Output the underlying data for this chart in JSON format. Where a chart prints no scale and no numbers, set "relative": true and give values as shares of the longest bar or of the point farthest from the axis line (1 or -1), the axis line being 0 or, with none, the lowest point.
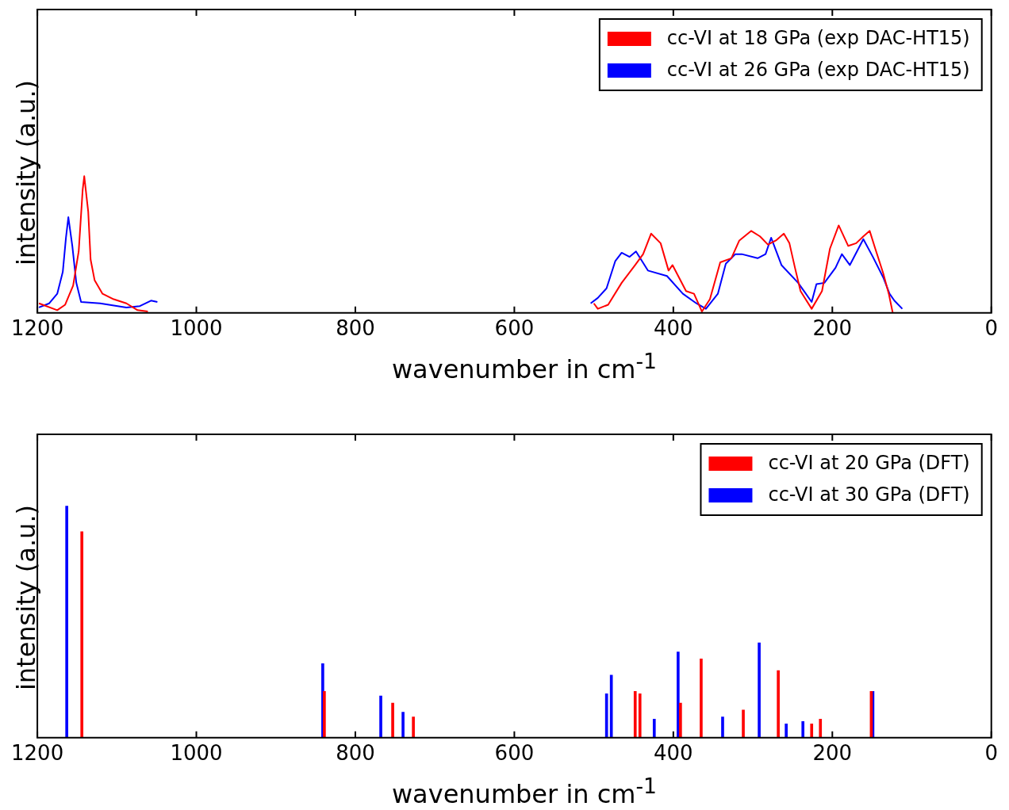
{
  "chart_data": [
    {
      "type": "line",
      "xlabel": "wavenumber in cm$^{-1}$",
      "ylabel": "intensity (a.u.)",
      "relative": true,
      "xlim": [
        1200,
        0
      ],
      "xticks": [
        1200,
        1000,
        800,
        600,
        400,
        200,
        0
      ],
      "legend": "top right",
      "series": [
        {
          "name": "cc-VI at 18 GPa (exp DAC-HT15)",
          "color": "#ff0000",
          "x": [
            1198,
            1175,
            1165,
            1155,
            1148,
            1143,
            1141,
            1136,
            1133,
            1128,
            1118,
            1104,
            1088,
            1074,
            1061,
            800,
            500,
            495,
            482,
            465,
            448,
            438,
            428,
            416,
            406,
            401,
            384,
            374,
            364,
            354,
            341,
            327,
            317,
            302,
            291,
            281,
            271,
            261,
            254,
            247,
            240,
            226,
            213,
            203,
            192,
            180,
            170,
            161,
            153,
            146,
            136,
            129,
            124
          ],
          "values": [
            0.07,
            0.02,
            0.06,
            0.2,
            0.45,
            0.9,
            1,
            0.74,
            0.39,
            0.24,
            0.14,
            0.1,
            0.07,
            0.02,
            0.01,
            null,
            0.07,
            0.03,
            0.06,
            0.22,
            0.35,
            0.43,
            0.58,
            0.51,
            0.31,
            0.35,
            0.16,
            0.14,
            0.01,
            0.1,
            0.37,
            0.4,
            0.53,
            0.6,
            0.56,
            0.5,
            0.53,
            0.58,
            0.51,
            0.33,
            0.16,
            0.03,
            0.16,
            0.47,
            0.64,
            0.49,
            0.51,
            0.56,
            0.6,
            0.47,
            0.29,
            0.14,
            0
          ]
        },
        {
          "name": "cc-VI at 26 GPa (exp DAC-HT15)",
          "color": "#0000ff",
          "x": [
            1198,
            1185,
            1175,
            1168,
            1164,
            1161,
            1156,
            1151,
            1145,
            1121,
            1088,
            1071,
            1057,
            1049,
            800,
            504,
            495,
            484,
            473,
            465,
            455,
            447,
            432,
            408,
            388,
            371,
            359,
            344,
            334,
            322,
            314,
            294,
            284,
            277,
            264,
            243,
            226,
            220,
            210,
            196,
            188,
            178,
            161,
            149,
            136,
            128,
            122,
            112
          ],
          "values": [
            0.04,
            0.07,
            0.14,
            0.3,
            0.55,
            0.7,
            0.49,
            0.22,
            0.08,
            0.07,
            0.04,
            0.05,
            0.09,
            0.08,
            null,
            0.07,
            0.11,
            0.18,
            0.38,
            0.44,
            0.41,
            0.45,
            0.31,
            0.27,
            0.14,
            0.07,
            0.03,
            0.14,
            0.36,
            0.43,
            0.43,
            0.4,
            0.43,
            0.55,
            0.35,
            0.22,
            0.08,
            0.21,
            0.22,
            0.33,
            0.43,
            0.35,
            0.54,
            0.41,
            0.26,
            0.14,
            0.09,
            0.03
          ]
        }
      ]
    },
    {
      "type": "bar",
      "xlabel": "wavenumber in cm$^{-1}$",
      "ylabel": "intensity (a.u.)",
      "relative": true,
      "xlim": [
        1200,
        0
      ],
      "xticks": [
        1200,
        1000,
        800,
        600,
        400,
        200,
        0
      ],
      "legend": "top right",
      "series": [
        {
          "name": "cc-VI at 20 GPa (DFT)",
          "color": "#ff0000",
          "x": [
            1144,
            839,
            753,
            727,
            448,
            442,
            391,
            365,
            312,
            268,
            226,
            215,
            151
          ],
          "values": [
            0.89,
            0.2,
            0.15,
            0.09,
            0.2,
            0.19,
            0.15,
            0.34,
            0.12,
            0.29,
            0.06,
            0.08,
            0.2
          ]
        },
        {
          "name": "cc-VI at 30 GPa (DFT)",
          "color": "#0000ff",
          "x": [
            1163,
            841,
            768,
            740,
            484,
            478,
            424,
            394,
            338,
            292,
            258,
            237,
            149
          ],
          "values": [
            1,
            0.32,
            0.18,
            0.11,
            0.19,
            0.27,
            0.08,
            0.37,
            0.09,
            0.41,
            0.06,
            0.07,
            0.2
          ]
        }
      ]
    }
  ]
}
